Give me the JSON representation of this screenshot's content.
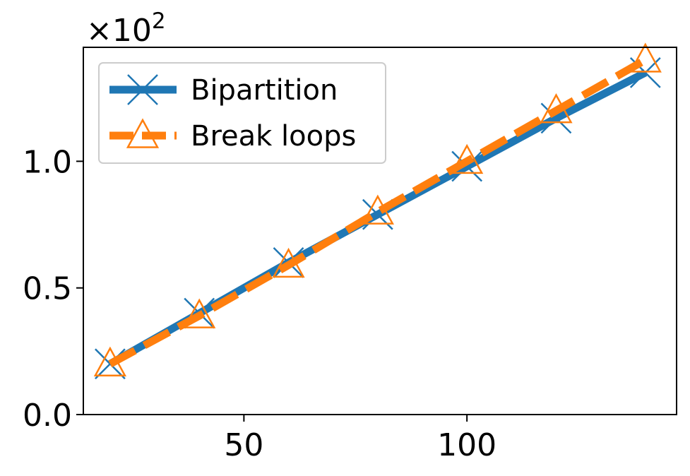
{
  "chart_data": {
    "type": "line",
    "title": "",
    "xlabel": "",
    "ylabel": "",
    "x": [
      20,
      40,
      60,
      80,
      100,
      120,
      140
    ],
    "xlim": [
      14,
      147
    ],
    "ylim": [
      0,
      1.45
    ],
    "y_scale_label": "×10",
    "y_scale_exponent": "2",
    "x_ticks": [
      50,
      100
    ],
    "x_tick_labels": [
      "50",
      "100"
    ],
    "y_ticks": [
      0.0,
      0.5,
      1.0
    ],
    "y_tick_labels": [
      "0.0",
      "0.5",
      "1.0"
    ],
    "grid": false,
    "legend_position": "top-left",
    "series": [
      {
        "name": "Bipartition",
        "color": "#1f77b4",
        "line_style": "solid",
        "marker": "x-marker",
        "values": [
          0.2,
          0.4,
          0.6,
          0.79,
          0.98,
          1.17,
          1.35
        ]
      },
      {
        "name": "Break loops",
        "color": "#ff7f0e",
        "line_style": "dashed",
        "marker": "triangle-marker",
        "values": [
          0.2,
          0.39,
          0.59,
          0.8,
          1.0,
          1.2,
          1.4
        ]
      }
    ]
  }
}
